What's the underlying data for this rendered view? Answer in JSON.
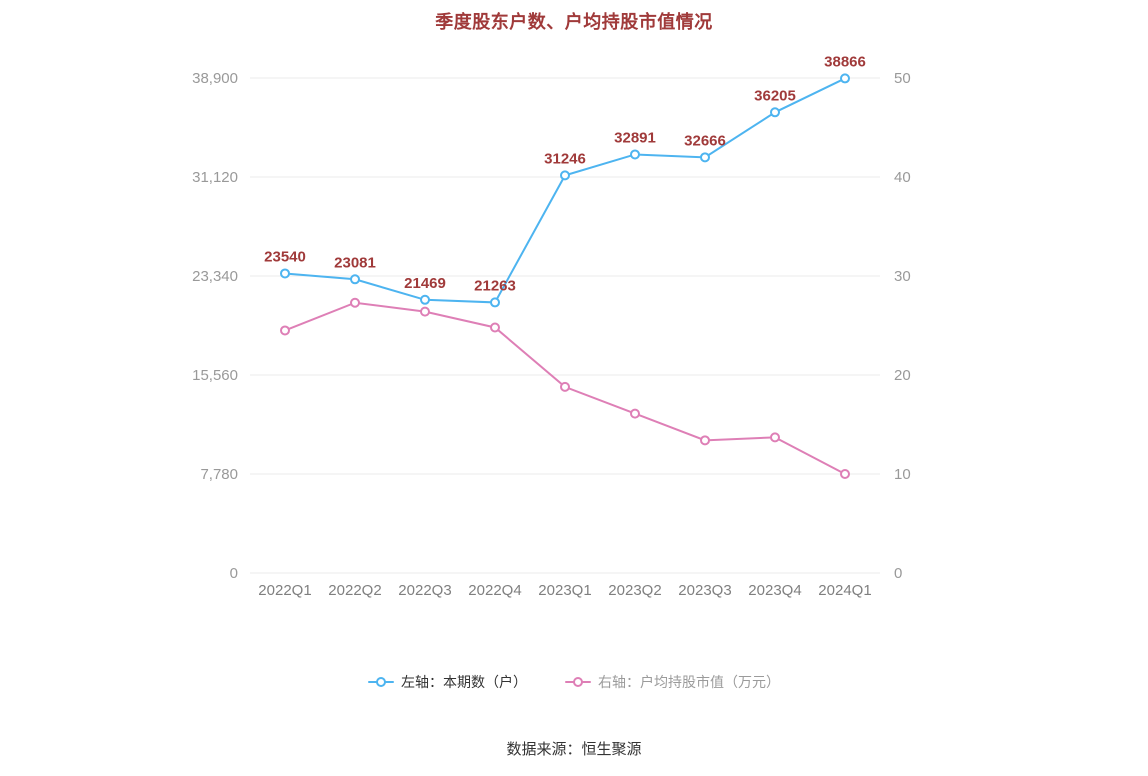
{
  "chart_data": {
    "type": "line",
    "title": "季度股东户数、户均持股市值情况",
    "categories": [
      "2022Q1",
      "2022Q2",
      "2022Q3",
      "2022Q4",
      "2023Q1",
      "2023Q2",
      "2023Q3",
      "2023Q4",
      "2024Q1"
    ],
    "series": [
      {
        "name": "左轴：本期数（户）",
        "axis": "left",
        "color": "#4DB4F0",
        "values": [
          23540,
          23081,
          21469,
          21263,
          31246,
          32891,
          32666,
          36205,
          38866
        ],
        "data_labels": true
      },
      {
        "name": "右轴：户均持股市值（万元）",
        "axis": "right",
        "color": "#DE7FB6",
        "values": [
          24.5,
          27.3,
          26.4,
          24.8,
          18.8,
          16.1,
          13.4,
          13.7,
          10.0
        ],
        "data_labels": false
      }
    ],
    "left_axis": {
      "min": 0,
      "max": 38900,
      "ticks": [
        {
          "value": 38900,
          "label": "38,900"
        },
        {
          "value": 31120,
          "label": "31,120"
        },
        {
          "value": 23340,
          "label": "23,340"
        },
        {
          "value": 15560,
          "label": "15,560"
        },
        {
          "value": 7780,
          "label": "7,780"
        },
        {
          "value": 0,
          "label": "0"
        }
      ]
    },
    "right_axis": {
      "min": 0,
      "max": 50,
      "ticks": [
        {
          "value": 50,
          "label": "50"
        },
        {
          "value": 40,
          "label": "40"
        },
        {
          "value": 30,
          "label": "30"
        },
        {
          "value": 20,
          "label": "20"
        },
        {
          "value": 10,
          "label": "10"
        },
        {
          "value": 0,
          "label": "0"
        }
      ]
    },
    "grid": true,
    "legend_position": "bottom",
    "colors": {
      "title": "#A03A3A",
      "data_label": "#A03A3A",
      "axis_text": "#999999",
      "x_axis_text": "#7F7F7F",
      "grid": "#EBEBEB",
      "blue_series": "#4DB4F0",
      "pink_series": "#DE7FB6"
    }
  },
  "legend": {
    "items": [
      {
        "label": "左轴：本期数（户）",
        "color": "#4DB4F0",
        "text_color": "#333333"
      },
      {
        "label": "右轴：户均持股市值（万元）",
        "color": "#DE7FB6",
        "text_color": "#9B9B9B"
      }
    ]
  },
  "footer": {
    "source": "数据来源：恒生聚源"
  }
}
